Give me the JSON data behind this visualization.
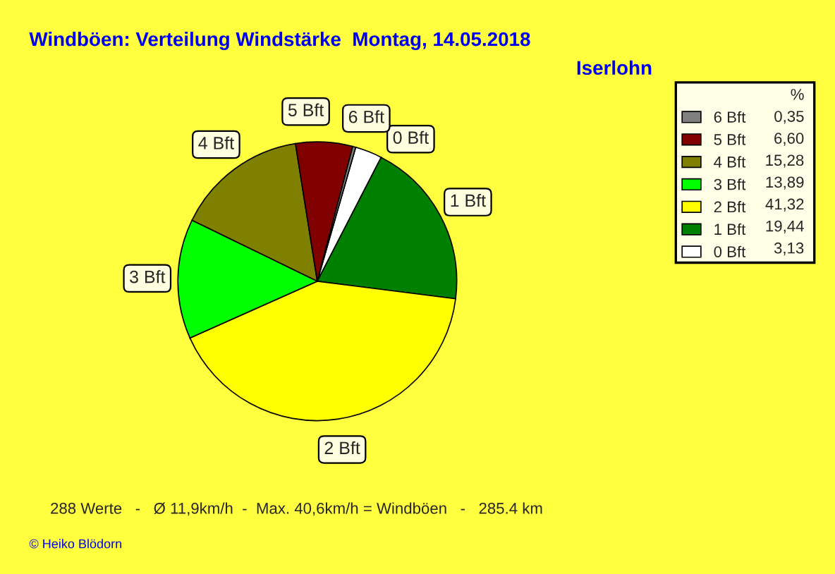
{
  "chart_data": {
    "type": "pie",
    "title": "Windböen: Verteilung Windstärke  Montag, 14.05.2018",
    "subtitle": "Iserlohn",
    "categories": [
      "0 Bft",
      "1 Bft",
      "2 Bft",
      "3 Bft",
      "4 Bft",
      "5 Bft",
      "6 Bft"
    ],
    "values": [
      3.13,
      19.44,
      41.32,
      13.89,
      15.28,
      6.6,
      0.35
    ],
    "colors": [
      "#ffffff",
      "#008000",
      "#ffff00",
      "#00ff00",
      "#808000",
      "#800000",
      "#808080"
    ],
    "value_labels": [
      "3,13",
      "19,44",
      "41,32",
      "13,89",
      "15,28",
      "6,60",
      "0,35"
    ],
    "legend_title": "%",
    "legend": "right",
    "annotations": [
      "288 Werte   -   Ø 11,9km/h  -  Max. 40,6km/h = Windböen   -   285.4 km",
      "© Heiko Blödorn"
    ]
  }
}
